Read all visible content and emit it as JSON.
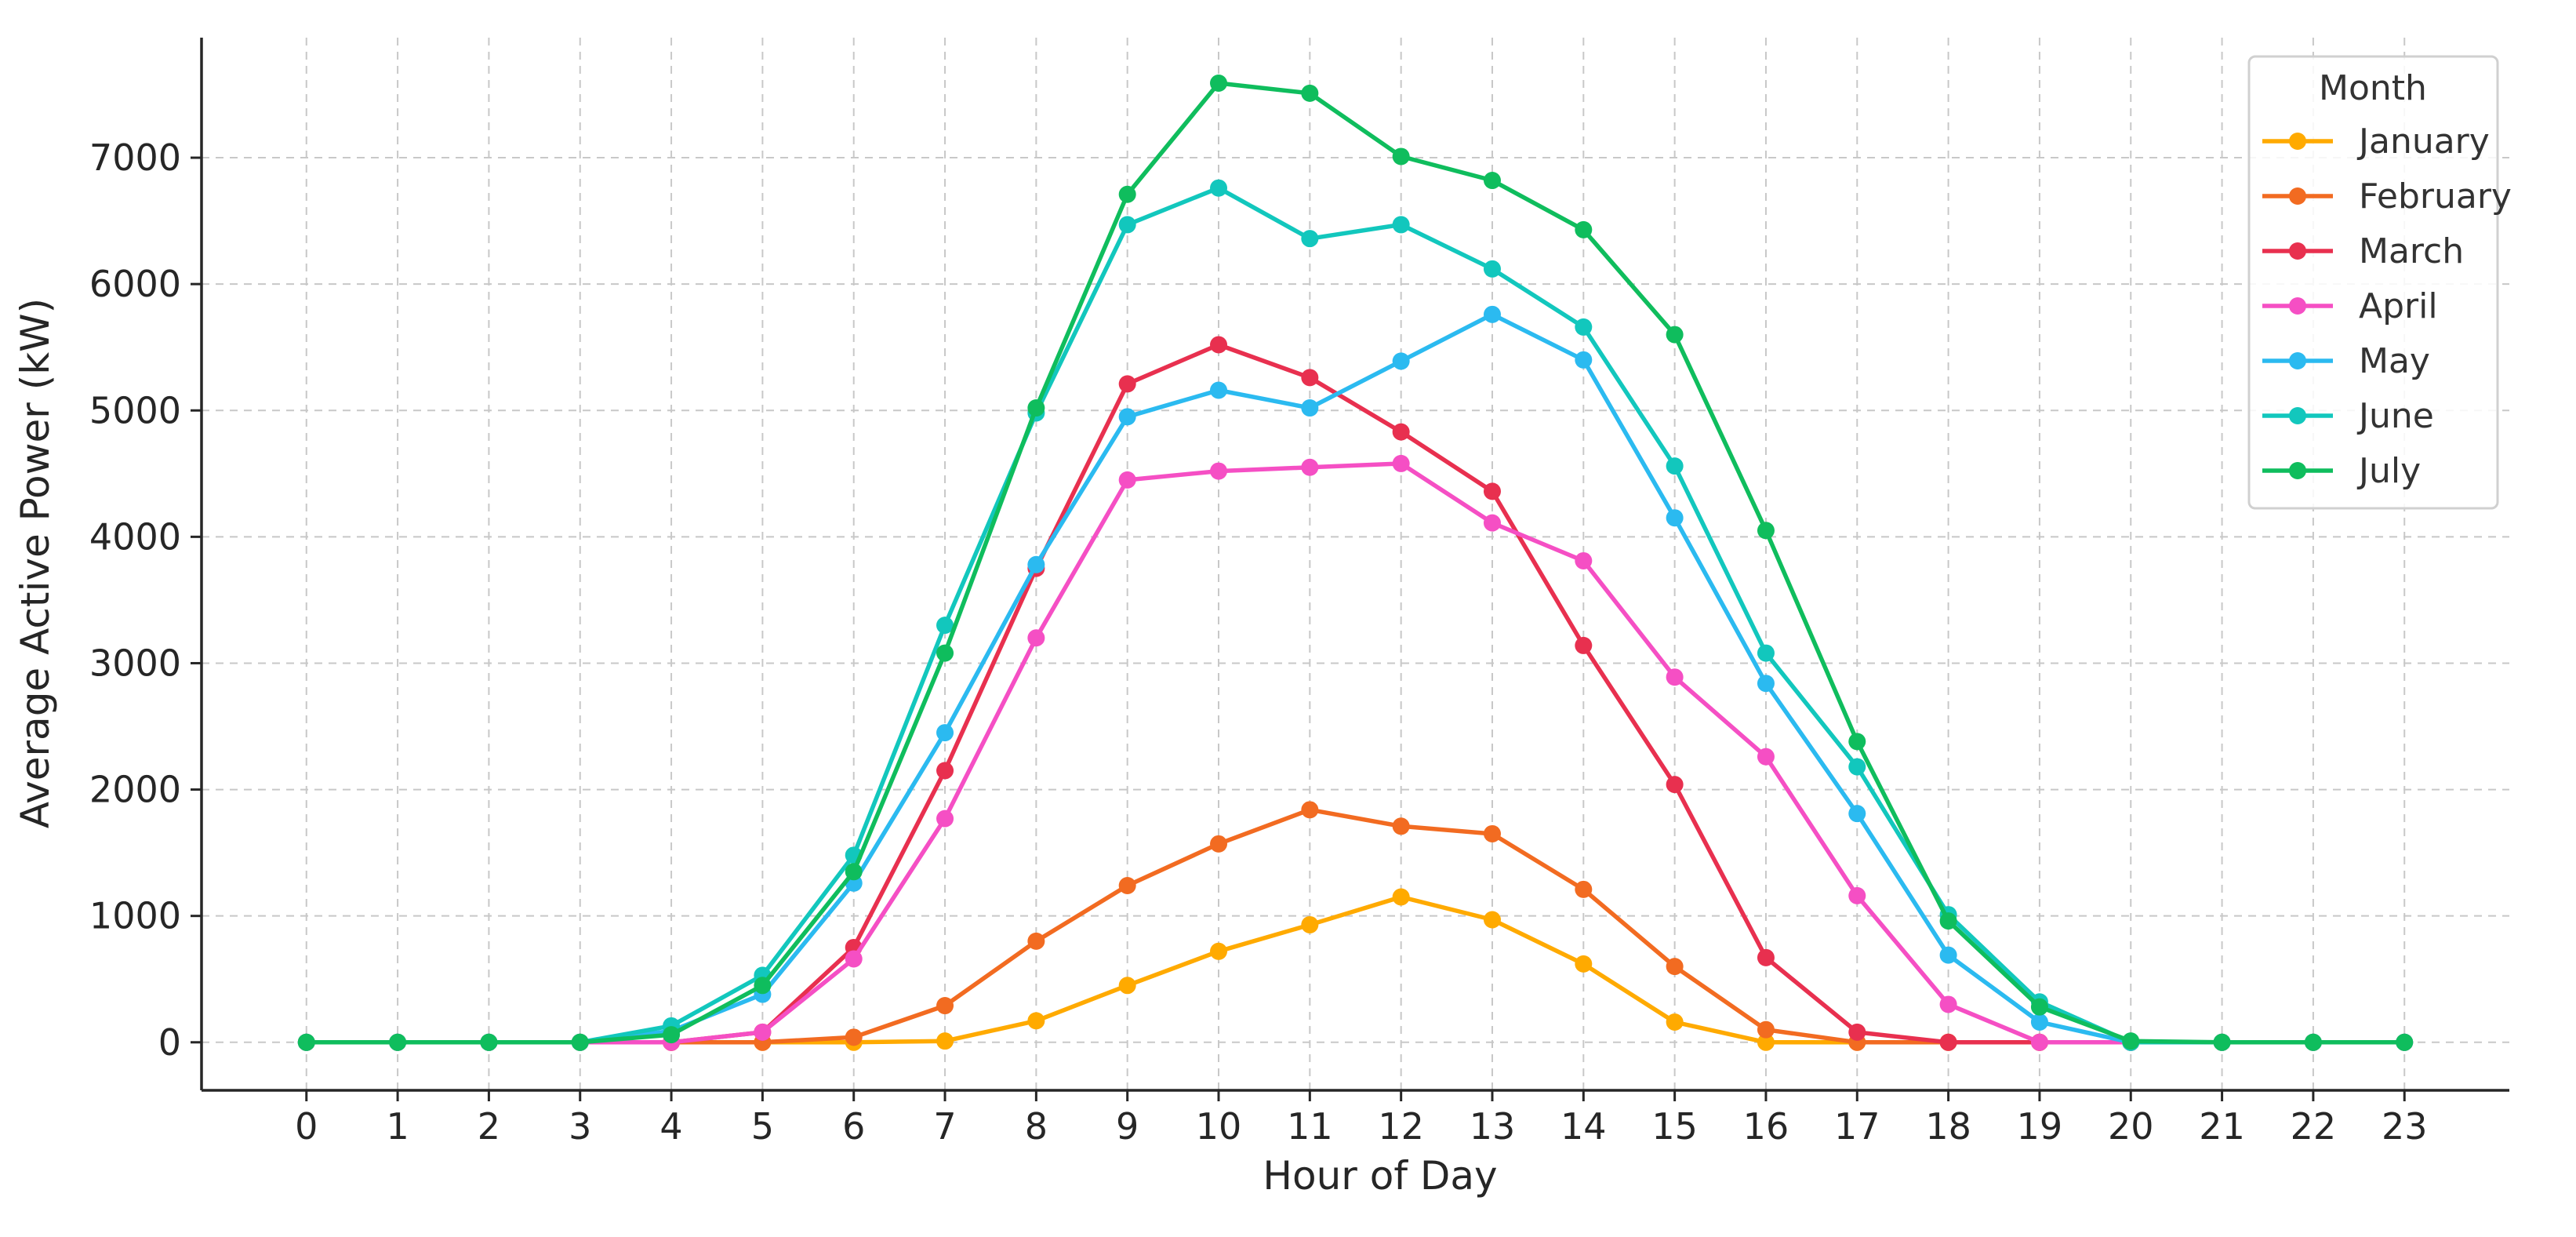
{
  "chart_data": {
    "type": "line",
    "title": "",
    "xlabel": "Hour of Day",
    "ylabel": "Average Active Power (kW)",
    "x": [
      0,
      1,
      2,
      3,
      4,
      5,
      6,
      7,
      8,
      9,
      10,
      11,
      12,
      13,
      14,
      15,
      16,
      17,
      18,
      19,
      20,
      21,
      22,
      23
    ],
    "xlim": [
      -1.15,
      24.15
    ],
    "ylim": [
      -380,
      7950
    ],
    "yticks": [
      0,
      1000,
      2000,
      3000,
      4000,
      5000,
      6000,
      7000
    ],
    "grid": true,
    "legend": {
      "title": "Month",
      "placement": "top-right"
    },
    "series": [
      {
        "name": "January",
        "color": "#ffaa00",
        "values": [
          0,
          0,
          0,
          0,
          0,
          0,
          0,
          10,
          170,
          450,
          720,
          930,
          1150,
          970,
          620,
          160,
          0,
          0,
          0,
          0,
          0,
          0,
          0,
          0
        ]
      },
      {
        "name": "February",
        "color": "#f26b21",
        "values": [
          0,
          0,
          0,
          0,
          0,
          0,
          40,
          290,
          800,
          1240,
          1570,
          1840,
          1710,
          1650,
          1210,
          600,
          100,
          0,
          0,
          0,
          0,
          0,
          0,
          0
        ]
      },
      {
        "name": "March",
        "color": "#e8304f",
        "values": [
          0,
          0,
          0,
          0,
          0,
          80,
          750,
          2150,
          3750,
          5210,
          5520,
          5260,
          4830,
          4360,
          3140,
          2040,
          670,
          80,
          0,
          0,
          0,
          0,
          0,
          0
        ]
      },
      {
        "name": "April",
        "color": "#f54fc4",
        "values": [
          0,
          0,
          0,
          0,
          0,
          80,
          660,
          1770,
          3200,
          4450,
          4520,
          4550,
          4580,
          4110,
          3810,
          2890,
          2260,
          1160,
          300,
          0,
          0,
          0,
          0,
          0
        ]
      },
      {
        "name": "May",
        "color": "#2bbaf0",
        "values": [
          0,
          0,
          0,
          0,
          90,
          380,
          1260,
          2450,
          3780,
          4950,
          5160,
          5020,
          5390,
          5760,
          5400,
          4150,
          2840,
          1810,
          690,
          160,
          0,
          0,
          0,
          0
        ]
      },
      {
        "name": "June",
        "color": "#12c7bd",
        "values": [
          0,
          0,
          0,
          0,
          130,
          530,
          1480,
          3300,
          4980,
          6470,
          6760,
          6360,
          6470,
          6120,
          5660,
          4560,
          3080,
          2180,
          1010,
          320,
          0,
          0,
          0,
          0
        ]
      },
      {
        "name": "July",
        "color": "#0fbd5d",
        "values": [
          0,
          0,
          0,
          0,
          60,
          450,
          1350,
          3080,
          5020,
          6710,
          7590,
          7510,
          7010,
          6820,
          6430,
          5600,
          4050,
          2380,
          960,
          280,
          10,
          0,
          0,
          0
        ]
      }
    ]
  }
}
